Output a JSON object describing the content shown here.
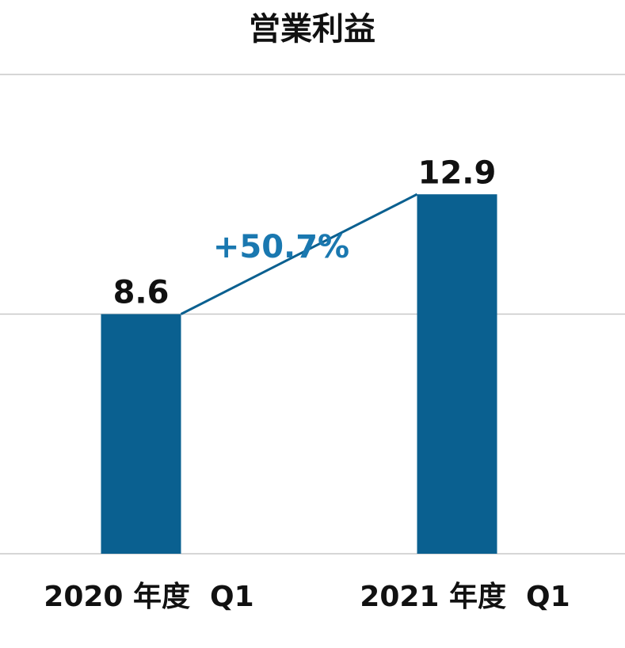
{
  "chart_data": {
    "type": "bar",
    "title": "営業利益",
    "categories": [
      "2020 年度  Q1",
      "2021 年度  Q1"
    ],
    "values": [
      8.6,
      12.9
    ],
    "value_labels": [
      "8.6",
      "12.9"
    ],
    "ylim": [
      0,
      17.2
    ],
    "gridlines": [
      0,
      8.6,
      17.2
    ],
    "grid": true,
    "annotation": "+50.7%",
    "colors": {
      "bar": "#0a6090",
      "annotation": "#1a78b0",
      "grid": "#c8c8c8",
      "text": "#111111"
    }
  }
}
